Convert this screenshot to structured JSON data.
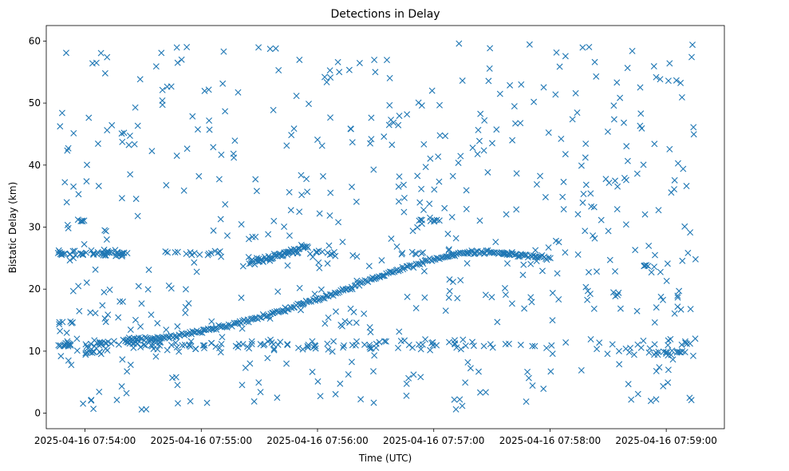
{
  "chart_data": {
    "type": "scatter",
    "title": "Detections in Delay",
    "xlabel": "Time (UTC)",
    "ylabel": "Bistatic Delay (km)",
    "marker": "x",
    "color": "#1f77b4",
    "xlim_seconds": [
      -20,
      330
    ],
    "ylim": [
      -2.5,
      62.5
    ],
    "x_ticks": [
      {
        "s": 0,
        "label": "2025-04-16 07:54:00"
      },
      {
        "s": 60,
        "label": "2025-04-16 07:55:00"
      },
      {
        "s": 120,
        "label": "2025-04-16 07:56:00"
      },
      {
        "s": 180,
        "label": "2025-04-16 07:57:00"
      },
      {
        "s": 240,
        "label": "2025-04-16 07:58:00"
      },
      {
        "s": 300,
        "label": "2025-04-16 07:59:00"
      }
    ],
    "y_ticks": [
      {
        "v": 0,
        "label": "0"
      },
      {
        "v": 10,
        "label": "10"
      },
      {
        "v": 20,
        "label": "20"
      },
      {
        "v": 30,
        "label": "30"
      },
      {
        "v": 40,
        "label": "40"
      },
      {
        "v": 50,
        "label": "50"
      },
      {
        "v": 60,
        "label": "60"
      }
    ],
    "x_range_data_seconds": [
      -14,
      316
    ],
    "series": [
      {
        "name": "main-track",
        "kind": "polyline",
        "knots": [
          [
            -14,
            11.5
          ],
          [
            20,
            11.7
          ],
          [
            40,
            12.2
          ],
          [
            60,
            13.2
          ],
          [
            80,
            14.6
          ],
          [
            100,
            16.3
          ],
          [
            120,
            18.3
          ],
          [
            140,
            20.6
          ],
          [
            160,
            23.0
          ],
          [
            180,
            24.8
          ],
          [
            195,
            25.9
          ],
          [
            210,
            26.0
          ],
          [
            240,
            25.0
          ]
        ],
        "x_start": 20,
        "x_end": 240,
        "count": 280,
        "spread": 0.25
      },
      {
        "name": "early-track",
        "kind": "polyline",
        "knots": [
          [
            85,
            24.2
          ],
          [
            95,
            25.0
          ],
          [
            105,
            25.9
          ],
          [
            115,
            26.8
          ]
        ],
        "x_start": 85,
        "x_end": 115,
        "count": 60,
        "spread": 0.4
      },
      {
        "name": "band-26",
        "kind": "band",
        "center": 25.8,
        "spread": 0.4,
        "segments": [
          [
            -14,
            12,
            34
          ],
          [
            12,
            22,
            18
          ],
          [
            40,
            70,
            14
          ],
          [
            115,
            135,
            10
          ],
          [
            160,
            235,
            16
          ]
        ]
      },
      {
        "name": "band-11",
        "kind": "band",
        "center": 11.0,
        "spread": 0.8,
        "segments": [
          [
            -14,
            20,
            34
          ],
          [
            20,
            70,
            40
          ],
          [
            70,
            130,
            30
          ],
          [
            130,
            200,
            36
          ],
          [
            200,
            316,
            30
          ]
        ]
      },
      {
        "name": "band-10",
        "kind": "band",
        "center": 9.8,
        "spread": 0.4,
        "segments": [
          [
            -5,
            10,
            12
          ],
          [
            290,
            310,
            18
          ]
        ]
      },
      {
        "name": "band-14",
        "kind": "band",
        "center": 14.6,
        "spread": 0.3,
        "segments": [
          [
            -14,
            -6,
            6
          ]
        ]
      },
      {
        "name": "cluster-31",
        "kind": "band",
        "center": 31.0,
        "spread": 0.2,
        "segments": [
          [
            -4,
            0,
            5
          ],
          [
            172,
            183,
            8
          ]
        ]
      },
      {
        "name": "cluster-24",
        "kind": "band",
        "center": 23.8,
        "spread": 0.2,
        "segments": [
          [
            288,
            294,
            6
          ]
        ]
      },
      {
        "name": "noise",
        "kind": "uniform",
        "x_range": [
          -14,
          316
        ],
        "y_range": [
          0.5,
          59.7
        ],
        "count": 560
      }
    ]
  }
}
